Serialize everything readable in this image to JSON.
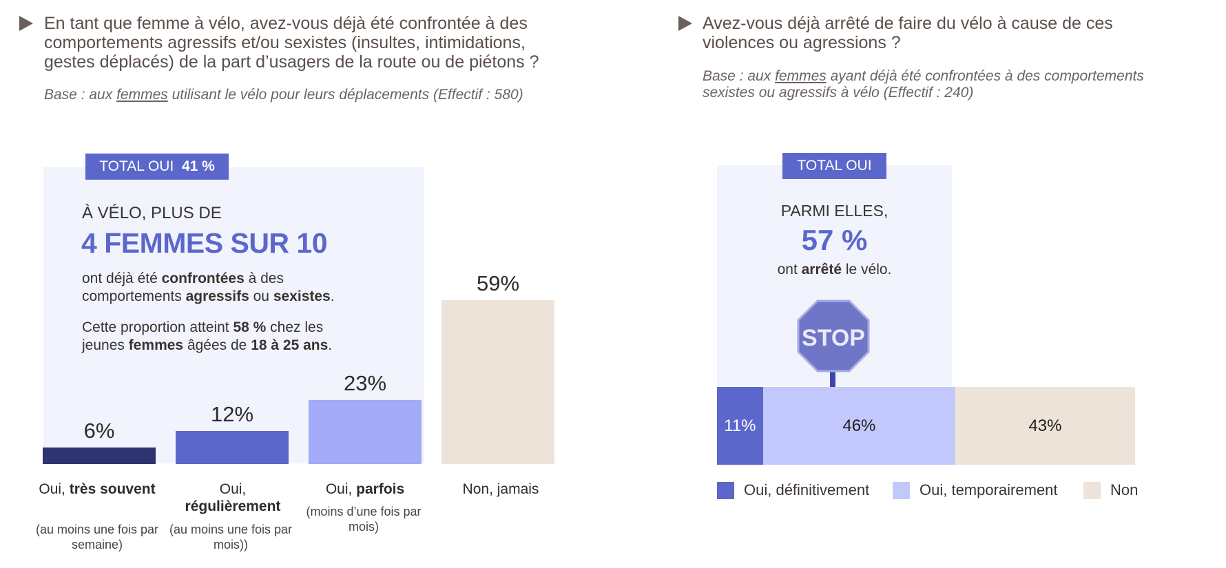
{
  "left": {
    "question": "En tant que femme à vélo, avez-vous déjà été confrontée à des comportements agressifs et/ou sexistes (insultes, intimidations, gestes déplacés) de la part d’usagers de la route ou de piétons ?",
    "base_prefix": "Base : aux ",
    "base_link": "femmes",
    "base_suffix": " utilisant le vélo pour leurs déplacements (Effectif : 580)",
    "tag_label": "TOTAL OUI",
    "tag_value": "41 %",
    "callout_kicker": "À VÉLO, PLUS DE",
    "callout_headline": "4 FEMMES SUR 10",
    "callout_p1_a": "ont déjà été ",
    "callout_p1_b": "confrontées",
    "callout_p1_c": " à des",
    "callout_p1_d": "comportements ",
    "callout_p1_e": "agressifs",
    "callout_p1_f": " ou ",
    "callout_p1_g": "sexistes",
    "callout_p1_h": ".",
    "callout_p2_a": "Cette proportion atteint ",
    "callout_p2_b": "58 %",
    "callout_p2_c": " chez les",
    "callout_p2_d": "jeunes ",
    "callout_p2_e": "femmes",
    "callout_p2_f": " âgées de ",
    "callout_p2_g": "18 à 25 ans",
    "callout_p2_h": ".",
    "categories": [
      {
        "prefix": "Oui, ",
        "bold": "très souvent",
        "sub": "(au moins une fois par semaine)"
      },
      {
        "prefix": "Oui,",
        "bold": "régulièrement",
        "sub": "(au moins une fois par mois))"
      },
      {
        "prefix": "Oui, ",
        "bold": "parfois",
        "sub": "(moins d’une fois par mois)"
      },
      {
        "prefix": "Non, jamais",
        "bold": "",
        "sub": ""
      }
    ]
  },
  "right": {
    "question": "Avez-vous déjà arrêté de faire du vélo à cause de ces violences ou agressions ?",
    "base_prefix": "Base : aux ",
    "base_link": "femmes",
    "base_suffix": " ayant déjà été confrontées à des comportements sexistes ou agressifs à vélo (Effectif : 240)",
    "tag_label": "TOTAL OUI",
    "callout_kicker": "PARMI ELLES,",
    "callout_value": "57 %",
    "callout_text_a": "ont ",
    "callout_text_b": "arrêté",
    "callout_text_c": " le vélo.",
    "stop_sign_text": "STOP"
  },
  "chart_data": [
    {
      "type": "bar",
      "title": "En tant que femme à vélo, avez-vous déjà été confrontée à des comportements agressifs et/ou sexistes ?",
      "categories": [
        "Oui, très souvent",
        "Oui, régulièrement",
        "Oui, parfois",
        "Non, jamais"
      ],
      "values": [
        6,
        12,
        23,
        59
      ],
      "value_labels": [
        "6%",
        "12%",
        "23%",
        "59%"
      ],
      "colors": [
        "#2e3470",
        "#5c67cc",
        "#a3aaf6",
        "#ede3d8"
      ],
      "ylim": [
        0,
        59
      ]
    },
    {
      "type": "bar",
      "stacked": true,
      "orientation": "horizontal",
      "title": "Avez-vous déjà arrêté de faire du vélo à cause de ces violences ou agressions ?",
      "series": [
        {
          "name": "Oui, définitivement",
          "values": [
            11
          ],
          "label": "11%",
          "color": "#5c67cc"
        },
        {
          "name": "Oui, temporairement",
          "values": [
            46
          ],
          "label": "46%",
          "color": "#c3c8fc"
        },
        {
          "name": "Non",
          "values": [
            43
          ],
          "label": "43%",
          "color": "#ede3d8"
        }
      ],
      "legend_position": "bottom"
    }
  ]
}
